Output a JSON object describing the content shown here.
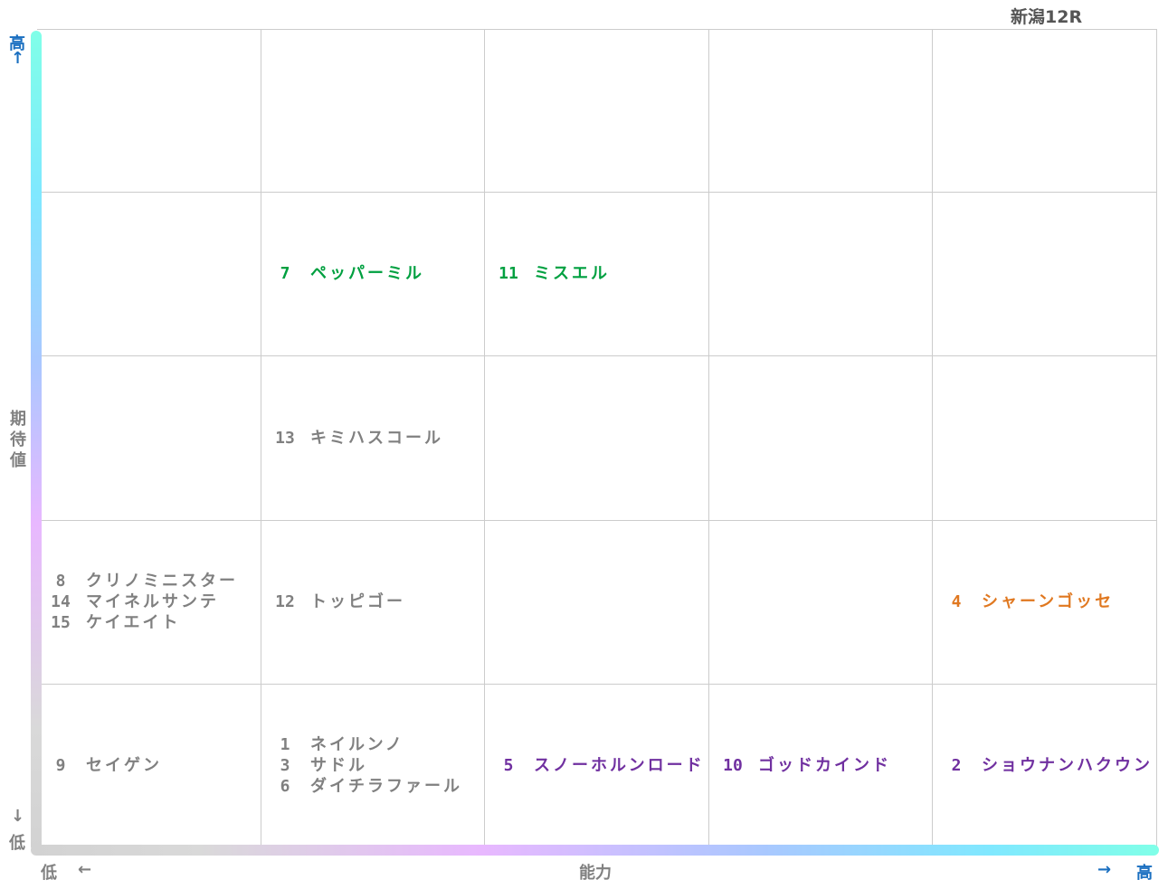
{
  "title": "新潟12R",
  "y_axis": {
    "label_chars": [
      "期",
      "待",
      "値"
    ],
    "high_char": "高",
    "high_arrow": "↑",
    "low_arrow": "↓",
    "low_char": "低"
  },
  "x_axis": {
    "label": "能力",
    "low_char": "低",
    "low_arrow": "←",
    "high_arrow": "→",
    "high_char": "高"
  },
  "colors": {
    "green": "#00a040",
    "gray": "#808080",
    "purple": "#7030a0",
    "orange": "#e07820",
    "axis_blue": "#1a6fc0",
    "grid": "#cccccc"
  },
  "chart_data": {
    "type": "table",
    "columns": 5,
    "rows": 5,
    "cells": [
      {
        "col": 1,
        "row": 3,
        "color": "green",
        "horses": [
          {
            "num": "7",
            "name": "ペッパーミル"
          }
        ]
      },
      {
        "col": 2,
        "row": 3,
        "color": "green",
        "horses": [
          {
            "num": "11",
            "name": "ミスエル"
          }
        ]
      },
      {
        "col": 1,
        "row": 2,
        "color": "gray",
        "horses": [
          {
            "num": "13",
            "name": "キミハスコール"
          }
        ]
      },
      {
        "col": 0,
        "row": 1,
        "color": "gray",
        "horses": [
          {
            "num": "8",
            "name": "クリノミニスター"
          },
          {
            "num": "14",
            "name": "マイネルサンテ"
          },
          {
            "num": "15",
            "name": "ケイエイト"
          }
        ]
      },
      {
        "col": 1,
        "row": 1,
        "color": "gray",
        "horses": [
          {
            "num": "12",
            "name": "トッピゴー"
          }
        ]
      },
      {
        "col": 4,
        "row": 1,
        "color": "orange",
        "horses": [
          {
            "num": "4",
            "name": "シャーンゴッセ"
          }
        ]
      },
      {
        "col": 0,
        "row": 0,
        "color": "gray",
        "horses": [
          {
            "num": "9",
            "name": "セイゲン"
          }
        ]
      },
      {
        "col": 1,
        "row": 0,
        "color": "gray",
        "horses": [
          {
            "num": "1",
            "name": "ネイルンノ"
          },
          {
            "num": "3",
            "name": "サドル"
          },
          {
            "num": "6",
            "name": "ダイチラファール"
          }
        ]
      },
      {
        "col": 2,
        "row": 0,
        "color": "purple",
        "horses": [
          {
            "num": "5",
            "name": "スノーホルンロード"
          }
        ]
      },
      {
        "col": 3,
        "row": 0,
        "color": "purple",
        "horses": [
          {
            "num": "10",
            "name": "ゴッドカインド"
          }
        ]
      },
      {
        "col": 4,
        "row": 0,
        "color": "purple",
        "horses": [
          {
            "num": "2",
            "name": "ショウナンハクウン"
          }
        ]
      }
    ]
  }
}
